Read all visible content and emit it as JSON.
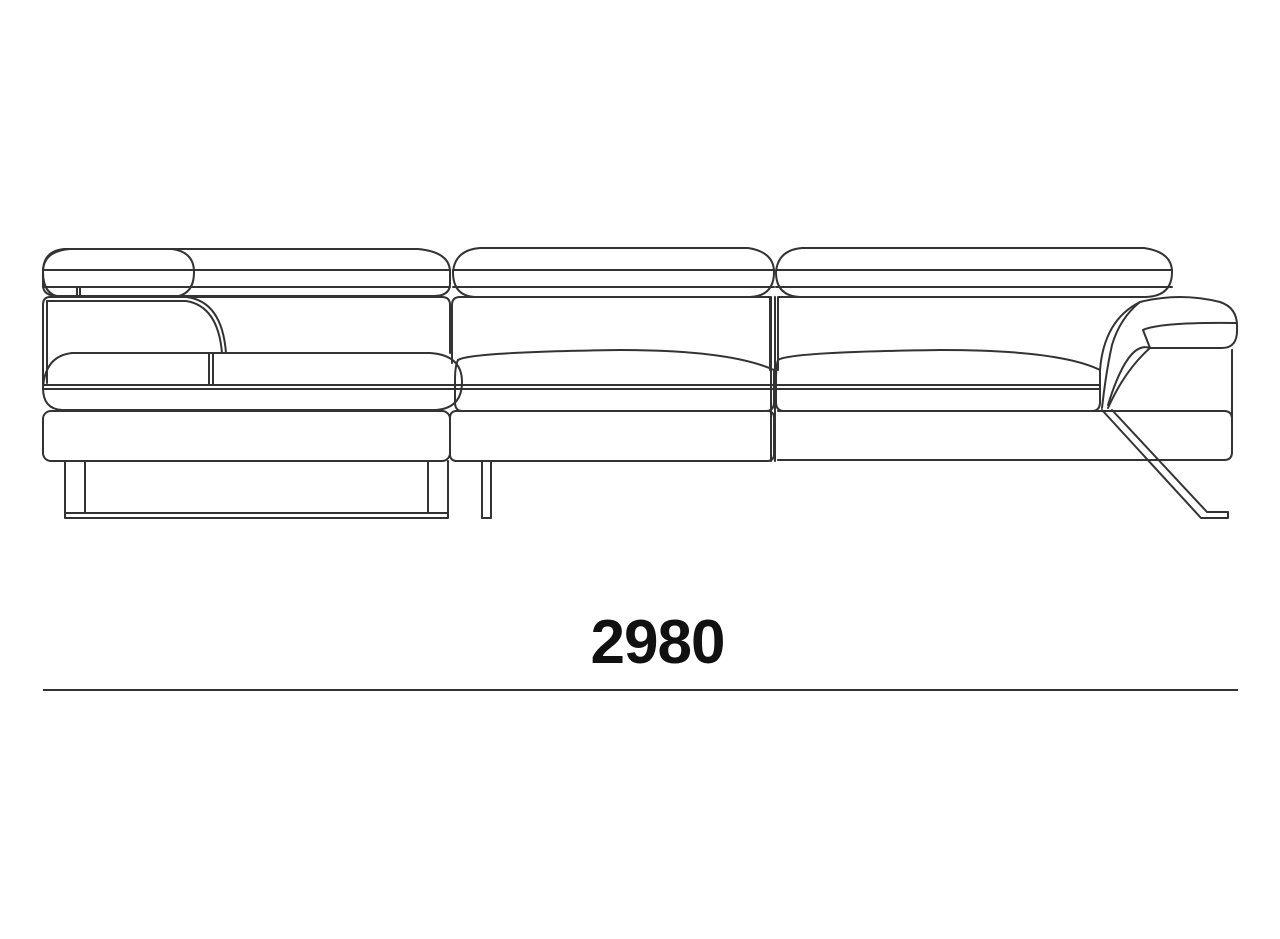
{
  "drawing": {
    "subject": "sofa-front-elevation",
    "stroke_color": "#333333",
    "background": "#ffffff"
  },
  "dimension": {
    "value": "2980",
    "text_color": "#111111"
  }
}
